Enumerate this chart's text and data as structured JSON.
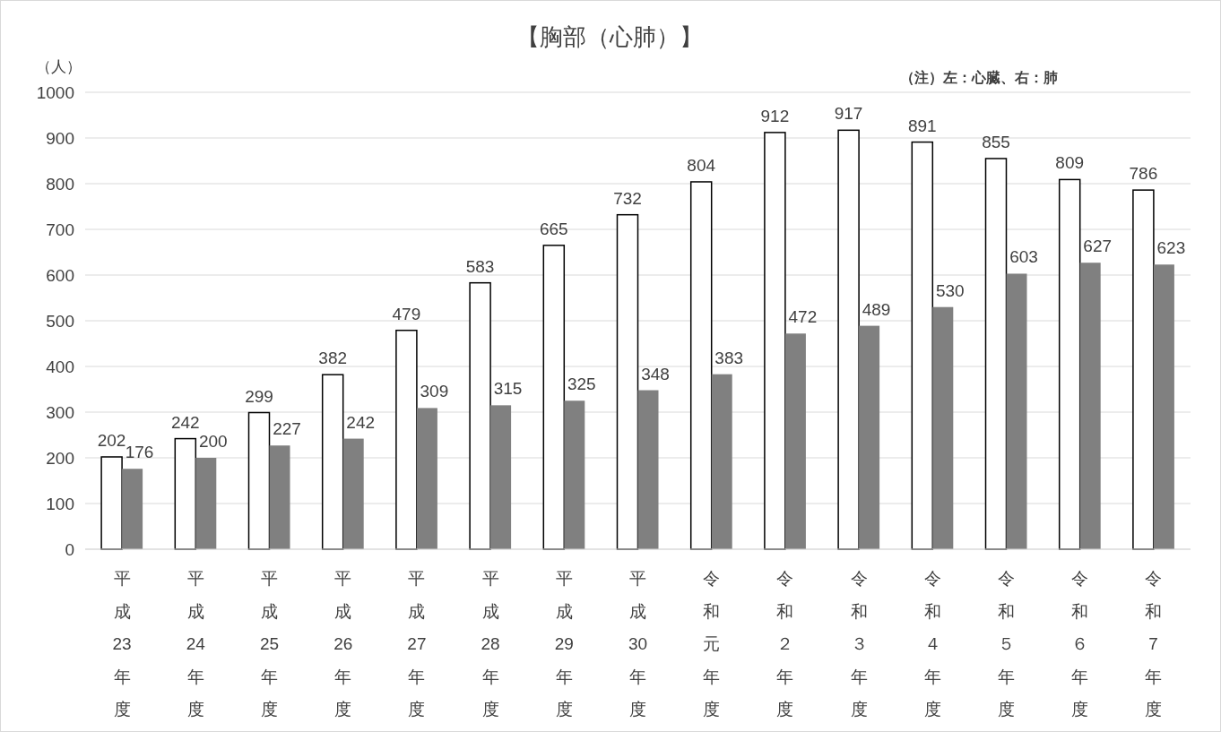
{
  "chart_data": {
    "type": "bar",
    "title": "【胸部（心肺）】",
    "ylabel": "（人）",
    "annotations": [
      "（注）左：心臓、右：肺"
    ],
    "categories": [
      "平成23年度",
      "平成24年度",
      "平成25年度",
      "平成26年度",
      "平成27年度",
      "平成28年度",
      "平成29年度",
      "平成30年度",
      "令和元年度",
      "令和２年度",
      "令和３年度",
      "令和４年度",
      "令和５年度",
      "令和６年度",
      "令和７年度"
    ],
    "series": [
      {
        "color": "#ffffff",
        "values": [
          202,
          242,
          299,
          382,
          479,
          583,
          665,
          732,
          804,
          912,
          917,
          891,
          855,
          809,
          786
        ]
      },
      {
        "color": "#808080",
        "values": [
          176,
          200,
          227,
          242,
          309,
          315,
          325,
          348,
          383,
          472,
          489,
          530,
          603,
          627,
          623
        ]
      }
    ],
    "ylim": [
      0,
      1000
    ],
    "yticks": [
      0,
      100,
      200,
      300,
      400,
      500,
      600,
      700,
      800,
      900,
      1000
    ],
    "grid": "y",
    "data_labels": true
  }
}
